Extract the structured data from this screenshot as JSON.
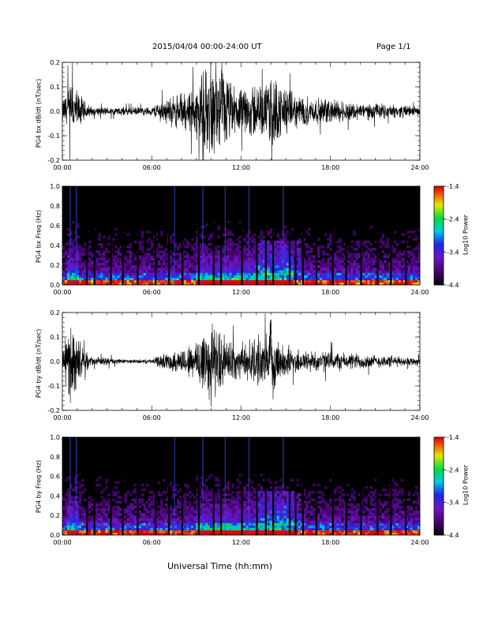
{
  "header": {
    "title": "2015/04/04  00:00-24:00 UT",
    "page": "Page 1/1"
  },
  "xlabel": "Universal Time (hh:mm)",
  "chart_data": [
    {
      "type": "line",
      "ylabel": "PG4 bx dB/dt (nT/sec)",
      "xlim": [
        0,
        24
      ],
      "ylim": [
        -0.2,
        0.2
      ],
      "x_ticks": [
        "00:00",
        "06:00",
        "12:00",
        "18:00",
        "24:00"
      ],
      "y_ticks": [
        "-0.2",
        "-0.1",
        "0.0",
        "0.1",
        "0.2"
      ],
      "envelope": {
        "hours": [
          0,
          0.5,
          1,
          1.5,
          2,
          3,
          4,
          5,
          6,
          6.5,
          7,
          8,
          9,
          9.5,
          10,
          10.5,
          11,
          11.5,
          12,
          12.5,
          13,
          13.5,
          14,
          14.5,
          15,
          15.5,
          16,
          17,
          18,
          19,
          20,
          21,
          22,
          23,
          24
        ],
        "amplitude": [
          0.05,
          0.14,
          0.1,
          0.05,
          0.02,
          0.02,
          0.02,
          0.02,
          0.02,
          0.05,
          0.06,
          0.09,
          0.12,
          0.2,
          0.2,
          0.2,
          0.18,
          0.12,
          0.1,
          0.12,
          0.15,
          0.1,
          0.2,
          0.14,
          0.12,
          0.08,
          0.08,
          0.06,
          0.06,
          0.05,
          0.04,
          0.04,
          0.03,
          0.03,
          0.02
        ]
      }
    },
    {
      "type": "heatmap",
      "ylabel": "PG4 bx Freq (Hz)",
      "xlim": [
        0,
        24
      ],
      "ylim": [
        0,
        1
      ],
      "x_ticks": [
        "00:00",
        "06:00",
        "12:00",
        "18:00",
        "24:00"
      ],
      "y_ticks": [
        "0.0",
        "0.2",
        "0.4",
        "0.6",
        "0.8",
        "1.0"
      ],
      "colorbar": {
        "label": "Log10 Power",
        "range": [
          -4.4,
          -1.4
        ],
        "ticks": [
          "-1.4",
          "-2.4",
          "-3.4",
          "-4.4"
        ]
      },
      "data_gaps_hours": [
        1.6,
        2.1,
        3.2,
        4.0,
        5.0,
        6.2,
        7.1,
        8.0,
        9.1,
        10.1,
        10.6,
        12.0,
        13.0,
        13.6,
        14.1,
        15.2,
        15.6,
        16.1,
        17.0,
        18.1,
        19.0,
        20.0,
        21.1,
        22.0,
        23.0
      ]
    },
    {
      "type": "line",
      "ylabel": "PG4 by dB/dt (nT/sec)",
      "xlim": [
        0,
        24
      ],
      "ylim": [
        -0.2,
        0.2
      ],
      "x_ticks": [
        "00:00",
        "06:00",
        "12:00",
        "18:00",
        "24:00"
      ],
      "y_ticks": [
        "-0.2",
        "-0.1",
        "0.0",
        "0.1",
        "0.2"
      ],
      "envelope": {
        "hours": [
          0,
          0.5,
          1,
          1.5,
          2,
          3,
          4,
          5,
          6,
          6.5,
          7,
          8,
          9,
          9.5,
          10,
          10.5,
          11,
          11.5,
          12,
          12.5,
          13,
          13.5,
          14,
          14.5,
          15,
          15.5,
          16,
          17,
          18,
          19,
          20,
          21,
          22,
          23,
          24
        ],
        "amplitude": [
          0.04,
          0.2,
          0.12,
          0.05,
          0.02,
          0.02,
          0.01,
          0.01,
          0.01,
          0.03,
          0.04,
          0.06,
          0.1,
          0.2,
          0.2,
          0.14,
          0.12,
          0.09,
          0.08,
          0.1,
          0.12,
          0.1,
          0.2,
          0.1,
          0.08,
          0.06,
          0.06,
          0.05,
          0.05,
          0.04,
          0.04,
          0.03,
          0.03,
          0.02,
          0.02
        ]
      }
    },
    {
      "type": "heatmap",
      "ylabel": "PG4 by Freq (Hz)",
      "xlim": [
        0,
        24
      ],
      "ylim": [
        0,
        1
      ],
      "x_ticks": [
        "00:00",
        "06:00",
        "12:00",
        "18:00",
        "24:00"
      ],
      "y_ticks": [
        "0.0",
        "0.2",
        "0.4",
        "0.6",
        "0.8",
        "1.0"
      ],
      "colorbar": {
        "label": "Log10 Power",
        "range": [
          -4.4,
          -1.4
        ],
        "ticks": [
          "-1.4",
          "-2.4",
          "-3.4",
          "-4.4"
        ]
      },
      "data_gaps_hours": [
        1.6,
        2.1,
        3.2,
        4.0,
        5.0,
        6.2,
        7.1,
        8.0,
        9.1,
        10.1,
        10.6,
        12.0,
        13.0,
        13.6,
        14.1,
        15.2,
        15.6,
        16.1,
        17.0,
        18.1,
        19.0,
        20.0,
        21.1,
        22.0,
        23.0
      ]
    }
  ]
}
